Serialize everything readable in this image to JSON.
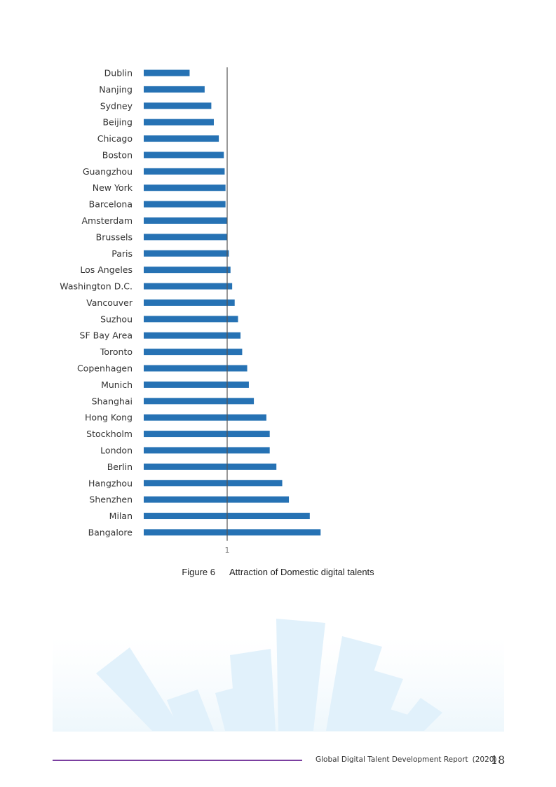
{
  "chart_data": {
    "type": "bar",
    "orientation": "horizontal",
    "title": "Attraction of Domestic digital talents",
    "figure_label": "Figure 6",
    "xlabel": "",
    "ylabel": "",
    "reference_line": 1,
    "ticks": [
      "1"
    ],
    "xlim": [
      0,
      2.5
    ],
    "series": [
      {
        "name": "Attraction",
        "color": "#2672b4"
      }
    ],
    "categories": [
      "Dublin",
      "Nanjing",
      "Sydney",
      "Beijing",
      "Chicago",
      "Boston",
      "Guangzhou",
      "New York",
      "Barcelona",
      "Amsterdam",
      "Brussels",
      "Paris",
      "Los Angeles",
      "Washington D.C.",
      "Vancouver",
      "Suzhou",
      "SF Bay Area",
      "Toronto",
      "Copenhagen",
      "Munich",
      "Shanghai",
      "Hong Kong",
      "Stockholm",
      "London",
      "Berlin",
      "Hangzhou",
      "Shenzhen",
      "Milan",
      "Bangalore"
    ],
    "values": [
      0.55,
      0.73,
      0.81,
      0.84,
      0.9,
      0.96,
      0.97,
      0.98,
      0.98,
      1.0,
      1.0,
      1.02,
      1.04,
      1.06,
      1.09,
      1.13,
      1.16,
      1.18,
      1.24,
      1.26,
      1.32,
      1.47,
      1.51,
      1.51,
      1.59,
      1.66,
      1.74,
      1.99,
      2.12
    ]
  },
  "footer": {
    "report_title": "Global Digital Talent Development Report",
    "report_year": "(2020)",
    "page_number": "18"
  },
  "colors": {
    "bar": "#2672b4",
    "axis": "#555555",
    "footer_line": "#7b3fa0",
    "deco": "#e3f2fb"
  }
}
